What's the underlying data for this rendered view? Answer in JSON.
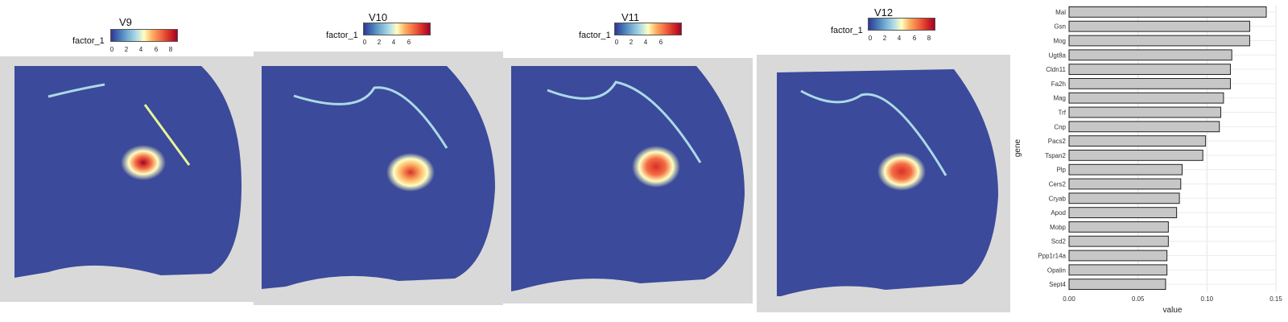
{
  "colors": {
    "tissue_low": "#3b4a9a",
    "spot_grey": "#cfcfcf",
    "bar_fill": "#c7c7c7",
    "bar_stroke": "#222222"
  },
  "panels": [
    {
      "title": "V9",
      "legend_label": "factor_1",
      "ticks": [
        "0",
        "2",
        "4",
        "6",
        "8"
      ]
    },
    {
      "title": "V10",
      "legend_label": "factor_1",
      "ticks": [
        "0",
        "2",
        "4",
        "6"
      ]
    },
    {
      "title": "V11",
      "legend_label": "factor_1",
      "ticks": [
        "0",
        "2",
        "4",
        "6"
      ]
    },
    {
      "title": "V12",
      "legend_label": "factor_1",
      "ticks": [
        "0",
        "2",
        "4",
        "6",
        "8"
      ]
    }
  ],
  "chart_data": {
    "type": "bar",
    "orientation": "horizontal",
    "xlabel": "value",
    "ylabel": "gene",
    "xlim": [
      0,
      0.15
    ],
    "xticks": [
      "0.00",
      "0.05",
      "0.10",
      "0.15"
    ],
    "categories": [
      "Mal",
      "Gsn",
      "Mog",
      "Ugt8a",
      "Cldn11",
      "Fa2h",
      "Mag",
      "Trf",
      "Cnp",
      "Pacs2",
      "Tspan2",
      "Plp",
      "Cers2",
      "Cryab",
      "Apod",
      "Mobp",
      "Scd2",
      "Ppp1r14a",
      "Opalin",
      "Sept4"
    ],
    "values": [
      0.143,
      0.131,
      0.131,
      0.118,
      0.117,
      0.117,
      0.112,
      0.11,
      0.109,
      0.099,
      0.097,
      0.082,
      0.081,
      0.08,
      0.078,
      0.072,
      0.072,
      0.071,
      0.071,
      0.07
    ]
  }
}
